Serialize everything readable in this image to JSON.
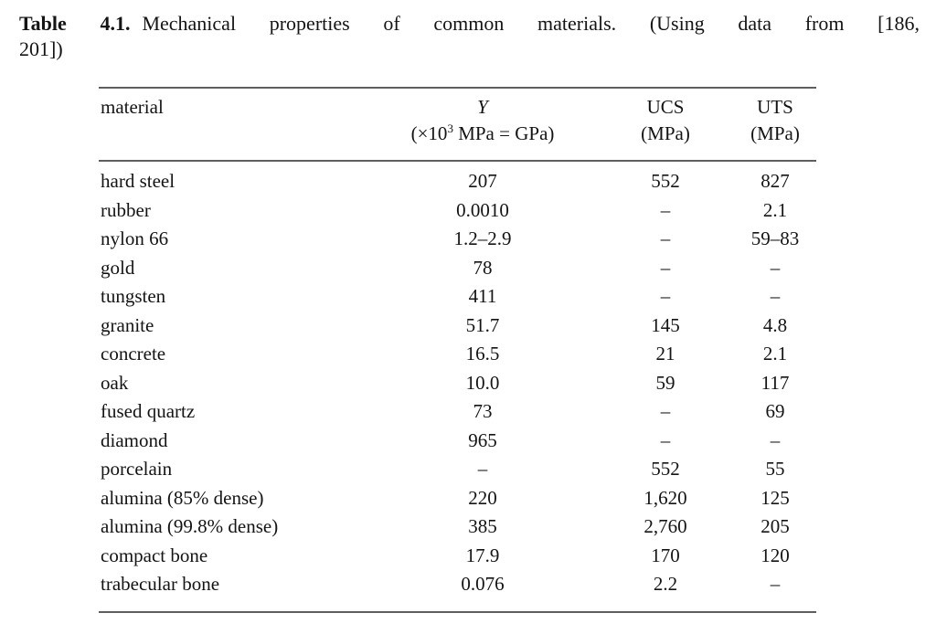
{
  "page": {
    "background": "#ffffff",
    "text_color": "#141414",
    "rule_color": "#5e5e5e"
  },
  "caption": {
    "label": "Table 4.1.",
    "line1": "Mechanical properties of common materials. (Using data from [186,",
    "line2": "201])"
  },
  "table": {
    "headers": {
      "material": "material",
      "y_symbol": "Y",
      "y_unit_pre": "(×10",
      "y_unit_sup": "3",
      "y_unit_post": " MPa = GPa)",
      "ucs": "UCS",
      "ucs_unit": "(MPa)",
      "uts": "UTS",
      "uts_unit": "(MPa)"
    },
    "rows": [
      [
        "hard steel",
        "207",
        "552",
        "827"
      ],
      [
        "rubber",
        "0.0010",
        "–",
        "2.1"
      ],
      [
        "nylon 66",
        "1.2–2.9",
        "–",
        "59–83"
      ],
      [
        "gold",
        "78",
        "–",
        "–"
      ],
      [
        "tungsten",
        "411",
        "–",
        "–"
      ],
      [
        "granite",
        "51.7",
        "145",
        "4.8"
      ],
      [
        "concrete",
        "16.5",
        "21",
        "2.1"
      ],
      [
        "oak",
        "10.0",
        "59",
        "117"
      ],
      [
        "fused quartz",
        "73",
        "–",
        "69"
      ],
      [
        "diamond",
        "965",
        "–",
        "–"
      ],
      [
        "porcelain",
        "–",
        "552",
        "55"
      ],
      [
        "alumina (85% dense)",
        "220",
        "1,620",
        "125"
      ],
      [
        "alumina (99.8% dense)",
        "385",
        "2,760",
        "205"
      ],
      [
        "compact bone",
        "17.9",
        "170",
        "120"
      ],
      [
        "trabecular bone",
        "0.076",
        "2.2",
        "–"
      ]
    ]
  }
}
